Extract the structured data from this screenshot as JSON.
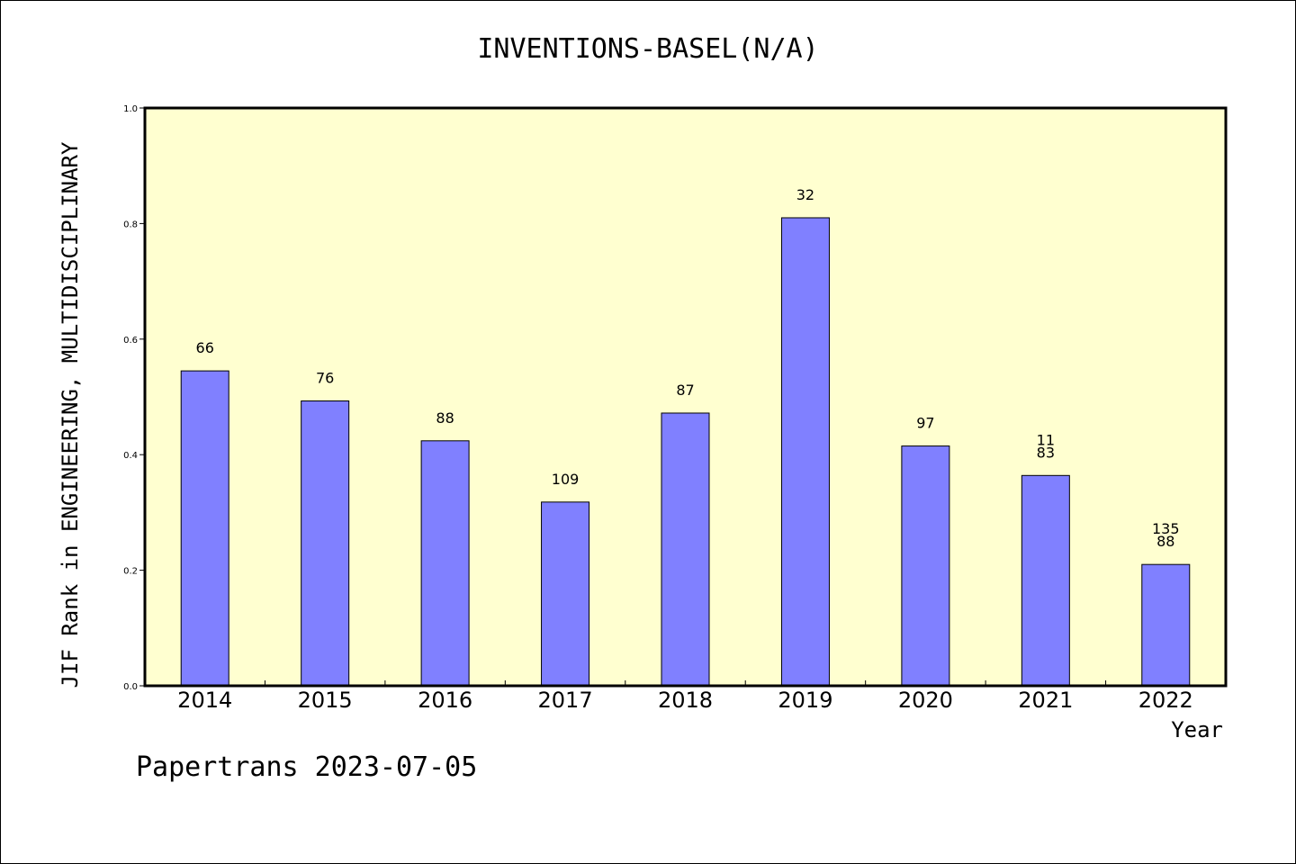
{
  "chart_data": {
    "type": "bar",
    "title": "INVENTIONS-BASEL(N/A)",
    "xlabel": "Year",
    "ylabel": "JIF Rank in ENGINEERING, MULTIDISCIPLINARY",
    "ylim": [
      0,
      1.0
    ],
    "yticks": [
      "0.0",
      "0.2",
      "0.4",
      "0.6",
      "0.8",
      "1.0"
    ],
    "categories": [
      "2014",
      "2015",
      "2016",
      "2017",
      "2018",
      "2019",
      "2020",
      "2021",
      "2022"
    ],
    "values": [
      0.545,
      0.493,
      0.424,
      0.318,
      0.472,
      0.81,
      0.415,
      0.364,
      0.21
    ],
    "bar_labels": [
      [
        "66"
      ],
      [
        "76"
      ],
      [
        "88"
      ],
      [
        "109"
      ],
      [
        "87"
      ],
      [
        "32"
      ],
      [
        "97"
      ],
      [
        "11",
        "83"
      ],
      [
        "135",
        "88"
      ]
    ],
    "grid": false,
    "colors": {
      "bar": "#8080ff",
      "plot_bg": "#ffffd0",
      "bar_edge": "#000000"
    }
  },
  "footer": "Papertrans 2023-07-05"
}
